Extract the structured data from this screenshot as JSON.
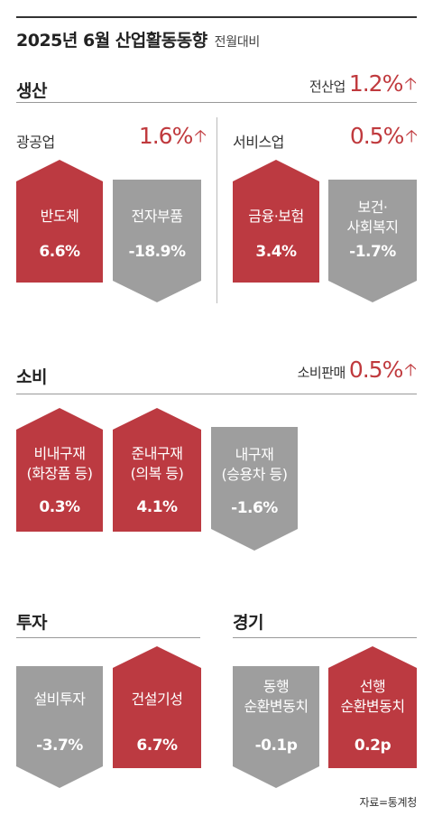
{
  "title": "2025년 6월 산업활동동향",
  "title_sub": "전월대비",
  "production": {
    "title": "생산",
    "total_label": "전산업",
    "total_value": "1.2%",
    "mining": {
      "label": "광공업",
      "value": "1.6%",
      "items": [
        {
          "name": "반도체",
          "value": "6.6%",
          "direction": "up"
        },
        {
          "name": "전자부품",
          "value": "-18.9%",
          "direction": "down"
        }
      ]
    },
    "services": {
      "label": "서비스업",
      "value": "0.5%",
      "items": [
        {
          "name": "금융·보험",
          "value": "3.4%",
          "direction": "up"
        },
        {
          "name": "보건·\n사회복지",
          "value": "-1.7%",
          "direction": "down"
        }
      ]
    }
  },
  "consumption": {
    "title": "소비",
    "total_label": "소비판매",
    "total_value": "0.5%",
    "items": [
      {
        "name": "비내구재\n(화장품 등)",
        "value": "0.3%",
        "direction": "up"
      },
      {
        "name": "준내구재\n(의복 등)",
        "value": "4.1%",
        "direction": "up"
      },
      {
        "name": "내구재\n(승용차 등)",
        "value": "-1.6%",
        "direction": "down"
      }
    ]
  },
  "investment": {
    "title": "투자",
    "items": [
      {
        "name": "설비투자",
        "value": "-3.7%",
        "direction": "down"
      },
      {
        "name": "건설기성",
        "value": "6.7%",
        "direction": "up"
      }
    ]
  },
  "economy": {
    "title": "경기",
    "items": [
      {
        "name": "동행\n순환변동치",
        "value": "-0.1p",
        "direction": "down"
      },
      {
        "name": "선행\n순환변동치",
        "value": "0.2p",
        "direction": "up"
      }
    ]
  },
  "source": "자료=통계청",
  "colors": {
    "up": "#bc3a41",
    "down": "#9e9e9e",
    "accent": "#c03a3e"
  },
  "icons": {
    "increase": "up-arrow-icon"
  }
}
